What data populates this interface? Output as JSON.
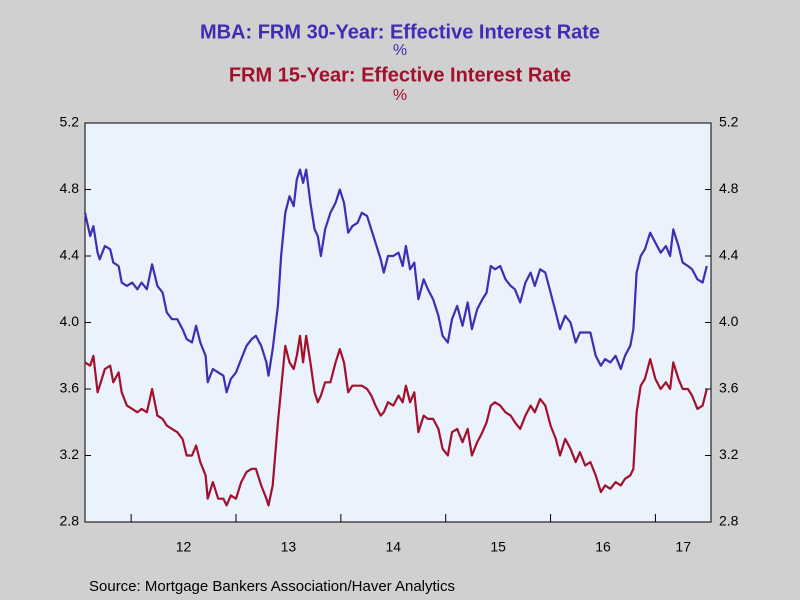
{
  "chart_data": {
    "type": "line",
    "source": "Source:  Mortgage Bankers Association/Haver Analytics",
    "xlim": [
      2011.56,
      2017.53
    ],
    "xticks": [
      {
        "value": 2012,
        "label": "12"
      },
      {
        "value": 2013,
        "label": "13"
      },
      {
        "value": 2014,
        "label": "14"
      },
      {
        "value": 2015,
        "label": "15"
      },
      {
        "value": 2016,
        "label": "16"
      },
      {
        "value": 2017,
        "label": "17"
      }
    ],
    "ylim": [
      2.8,
      5.2
    ],
    "yticks": [
      2.8,
      3.2,
      3.6,
      {
        "value": 4,
        "label": "4.0"
      },
      4.4,
      4.8,
      5.2
    ],
    "grid": false,
    "x": [
      2011.56,
      2011.61,
      2011.64,
      2011.68,
      2011.7,
      2011.75,
      2011.8,
      2011.83,
      2011.88,
      2011.91,
      2011.96,
      2012.01,
      2012.06,
      2012.1,
      2012.15,
      2012.2,
      2012.25,
      2012.3,
      2012.34,
      2012.39,
      2012.44,
      2012.49,
      2012.53,
      2012.58,
      2012.62,
      2012.66,
      2012.71,
      2012.73,
      2012.78,
      2012.83,
      2012.88,
      2012.91,
      2012.95,
      2013.0,
      2013.05,
      2013.1,
      2013.15,
      2013.19,
      2013.24,
      2013.29,
      2013.31,
      2013.35,
      2013.4,
      2013.43,
      2013.47,
      2013.51,
      2013.55,
      2013.58,
      2013.61,
      2013.64,
      2013.67,
      2013.71,
      2013.75,
      2013.78,
      2013.81,
      2013.85,
      2013.9,
      2013.95,
      2013.99,
      2014.03,
      2014.07,
      2014.11,
      2014.16,
      2014.2,
      2014.25,
      2014.29,
      2014.33,
      2014.38,
      2014.41,
      2014.45,
      2014.5,
      2014.55,
      2014.59,
      2014.62,
      2014.66,
      2014.7,
      2014.74,
      2014.79,
      2014.83,
      2014.88,
      2014.93,
      2014.97,
      2015.02,
      2015.06,
      2015.11,
      2015.16,
      2015.21,
      2015.25,
      2015.3,
      2015.35,
      2015.39,
      2015.43,
      2015.47,
      2015.52,
      2015.57,
      2015.62,
      2015.66,
      2015.71,
      2015.76,
      2015.81,
      2015.85,
      2015.9,
      2015.95,
      2016.0,
      2016.05,
      2016.09,
      2016.14,
      2016.19,
      2016.24,
      2016.28,
      2016.33,
      2016.38,
      2016.43,
      2016.48,
      2016.52,
      2016.57,
      2016.62,
      2016.67,
      2016.71,
      2016.76,
      2016.79,
      2016.82,
      2016.86,
      2016.9,
      2016.95,
      2017.0,
      2017.05,
      2017.1,
      2017.14,
      2017.17,
      2017.22,
      2017.26,
      2017.31,
      2017.35,
      2017.4,
      2017.45,
      2017.49
    ],
    "series": [
      {
        "name": "MBA: FRM 30-Year: Effective Interest Rate",
        "unit": "%",
        "color": "#3f2db4",
        "values": [
          4.66,
          4.52,
          4.58,
          4.42,
          4.38,
          4.46,
          4.44,
          4.36,
          4.34,
          4.24,
          4.22,
          4.24,
          4.2,
          4.24,
          4.2,
          4.35,
          4.22,
          4.18,
          4.06,
          4.02,
          4.02,
          3.96,
          3.9,
          3.88,
          3.98,
          3.88,
          3.8,
          3.64,
          3.72,
          3.7,
          3.68,
          3.58,
          3.66,
          3.7,
          3.78,
          3.86,
          3.9,
          3.92,
          3.86,
          3.76,
          3.68,
          3.84,
          4.1,
          4.4,
          4.66,
          4.76,
          4.7,
          4.86,
          4.92,
          4.84,
          4.92,
          4.72,
          4.56,
          4.52,
          4.4,
          4.56,
          4.66,
          4.72,
          4.8,
          4.72,
          4.54,
          4.58,
          4.6,
          4.66,
          4.64,
          4.56,
          4.48,
          4.38,
          4.3,
          4.4,
          4.4,
          4.42,
          4.34,
          4.46,
          4.32,
          4.36,
          4.14,
          4.26,
          4.2,
          4.14,
          4.04,
          3.92,
          3.88,
          4.02,
          4.1,
          3.98,
          4.12,
          3.96,
          4.08,
          4.14,
          4.18,
          4.34,
          4.32,
          4.34,
          4.26,
          4.22,
          4.2,
          4.12,
          4.24,
          4.3,
          4.22,
          4.32,
          4.3,
          4.18,
          4.06,
          3.96,
          4.04,
          4.0,
          3.88,
          3.94,
          3.94,
          3.94,
          3.8,
          3.74,
          3.78,
          3.76,
          3.8,
          3.72,
          3.8,
          3.86,
          3.96,
          4.3,
          4.4,
          4.44,
          4.54,
          4.48,
          4.42,
          4.46,
          4.4,
          4.56,
          4.46,
          4.36,
          4.34,
          4.32,
          4.26,
          4.24,
          4.34
        ]
      },
      {
        "name": "FRM 15-Year: Effective Interest Rate",
        "unit": "%",
        "color": "#a3102c",
        "values": [
          3.76,
          3.74,
          3.8,
          3.58,
          3.62,
          3.72,
          3.74,
          3.64,
          3.7,
          3.58,
          3.5,
          3.48,
          3.46,
          3.48,
          3.46,
          3.6,
          3.44,
          3.42,
          3.38,
          3.36,
          3.34,
          3.3,
          3.2,
          3.2,
          3.26,
          3.16,
          3.08,
          2.94,
          3.04,
          2.94,
          2.94,
          2.9,
          2.96,
          2.94,
          3.04,
          3.1,
          3.12,
          3.12,
          3.02,
          2.94,
          2.9,
          3.02,
          3.4,
          3.6,
          3.86,
          3.76,
          3.72,
          3.8,
          3.92,
          3.76,
          3.92,
          3.76,
          3.58,
          3.52,
          3.56,
          3.64,
          3.64,
          3.76,
          3.84,
          3.76,
          3.58,
          3.62,
          3.62,
          3.62,
          3.6,
          3.56,
          3.5,
          3.44,
          3.46,
          3.52,
          3.5,
          3.56,
          3.52,
          3.62,
          3.52,
          3.58,
          3.34,
          3.44,
          3.42,
          3.42,
          3.36,
          3.24,
          3.2,
          3.34,
          3.36,
          3.28,
          3.36,
          3.2,
          3.28,
          3.34,
          3.4,
          3.5,
          3.52,
          3.5,
          3.46,
          3.44,
          3.4,
          3.36,
          3.44,
          3.5,
          3.46,
          3.54,
          3.5,
          3.38,
          3.3,
          3.2,
          3.3,
          3.24,
          3.16,
          3.22,
          3.14,
          3.16,
          3.08,
          2.98,
          3.02,
          3.0,
          3.04,
          3.02,
          3.06,
          3.08,
          3.12,
          3.46,
          3.62,
          3.66,
          3.78,
          3.66,
          3.6,
          3.64,
          3.6,
          3.76,
          3.66,
          3.6,
          3.6,
          3.56,
          3.48,
          3.5,
          3.6
        ]
      }
    ]
  }
}
